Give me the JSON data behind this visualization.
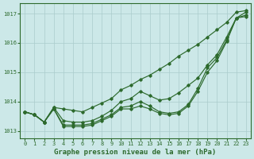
{
  "xlabel": "Graphe pression niveau de la mer (hPa)",
  "x": [
    0,
    1,
    2,
    3,
    4,
    5,
    6,
    7,
    8,
    9,
    10,
    11,
    12,
    13,
    14,
    15,
    16,
    17,
    18,
    19,
    20,
    21,
    22,
    23
  ],
  "series1": [
    1013.65,
    1013.55,
    1013.3,
    1013.8,
    1013.75,
    1013.7,
    1013.65,
    1013.8,
    1013.95,
    1014.1,
    1014.4,
    1014.55,
    1014.75,
    1014.9,
    1015.1,
    1015.3,
    1015.55,
    1015.75,
    1015.95,
    1016.2,
    1016.45,
    1016.7,
    1017.05,
    1017.1
  ],
  "series2": [
    1013.65,
    1013.55,
    1013.3,
    1013.8,
    1013.35,
    1013.3,
    1013.3,
    1013.35,
    1013.5,
    1013.7,
    1014.0,
    1014.1,
    1014.35,
    1014.2,
    1014.05,
    1014.1,
    1014.3,
    1014.55,
    1014.8,
    1015.25,
    1015.6,
    1016.2,
    1016.85,
    1017.05
  ],
  "series3": [
    1013.65,
    1013.55,
    1013.3,
    1013.75,
    1013.2,
    1013.2,
    1013.2,
    1013.25,
    1013.4,
    1013.55,
    1013.8,
    1013.85,
    1014.0,
    1013.85,
    1013.65,
    1013.6,
    1013.65,
    1013.9,
    1014.45,
    1015.15,
    1015.5,
    1016.1,
    1016.85,
    1016.95
  ],
  "series4": [
    1013.65,
    1013.55,
    1013.3,
    1013.75,
    1013.15,
    1013.15,
    1013.15,
    1013.2,
    1013.35,
    1013.5,
    1013.75,
    1013.75,
    1013.85,
    1013.75,
    1013.6,
    1013.55,
    1013.6,
    1013.85,
    1014.35,
    1015.0,
    1015.4,
    1016.05,
    1016.85,
    1016.9
  ],
  "line_color": "#2d6a2d",
  "bg_color": "#cce8e8",
  "grid_color": "#aacccc",
  "ylim_min": 1012.75,
  "ylim_max": 1017.35,
  "xlim_min": -0.5,
  "xlim_max": 23.5,
  "yticks": [
    1013,
    1014,
    1015,
    1016,
    1017
  ],
  "xticks": [
    0,
    1,
    2,
    3,
    4,
    5,
    6,
    7,
    8,
    9,
    10,
    11,
    12,
    13,
    14,
    15,
    16,
    17,
    18,
    19,
    20,
    21,
    22,
    23
  ],
  "tick_fontsize": 5.0,
  "label_fontsize": 6.5,
  "marker": "D",
  "markersize": 1.8,
  "linewidth": 0.85
}
